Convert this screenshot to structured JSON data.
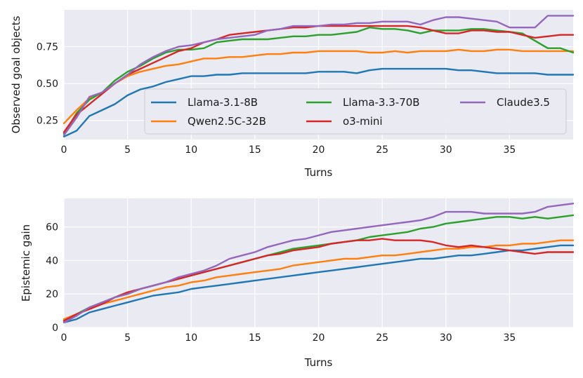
{
  "chart_data": [
    {
      "type": "line",
      "xlabel": "Turns",
      "ylabel": "Observed goal objects",
      "xlim": [
        0,
        40
      ],
      "ylim": [
        0.12,
        1.0
      ],
      "xticks": [
        0,
        5,
        10,
        15,
        20,
        25,
        30,
        35
      ],
      "yticks": [
        0.25,
        0.5,
        0.75
      ],
      "ytick_labels": [
        "0.25",
        "0.50",
        "0.75"
      ],
      "legend": "lower-right, 3 columns",
      "series": [
        {
          "name": "Llama-3.1-8B",
          "color": "#1f77b4",
          "values": [
            0.14,
            0.18,
            0.28,
            0.32,
            0.36,
            0.42,
            0.46,
            0.48,
            0.51,
            0.53,
            0.55,
            0.55,
            0.56,
            0.56,
            0.57,
            0.57,
            0.57,
            0.57,
            0.57,
            0.57,
            0.58,
            0.58,
            0.58,
            0.57,
            0.59,
            0.6,
            0.6,
            0.6,
            0.6,
            0.6,
            0.6,
            0.59,
            0.59,
            0.58,
            0.57,
            0.57,
            0.57,
            0.57,
            0.56,
            0.56,
            0.56
          ]
        },
        {
          "name": "Qwen2.5C-32B",
          "color": "#ff7f0e",
          "values": [
            0.23,
            0.32,
            0.4,
            0.44,
            0.5,
            0.55,
            0.58,
            0.6,
            0.62,
            0.63,
            0.65,
            0.67,
            0.67,
            0.68,
            0.68,
            0.69,
            0.7,
            0.7,
            0.71,
            0.71,
            0.72,
            0.72,
            0.72,
            0.72,
            0.71,
            0.71,
            0.72,
            0.71,
            0.72,
            0.72,
            0.72,
            0.73,
            0.72,
            0.72,
            0.73,
            0.73,
            0.72,
            0.72,
            0.72,
            0.72,
            0.72
          ]
        },
        {
          "name": "Llama-3.3-70B",
          "color": "#2ca02c",
          "values": [
            0.16,
            0.3,
            0.39,
            0.44,
            0.52,
            0.58,
            0.62,
            0.67,
            0.71,
            0.73,
            0.73,
            0.74,
            0.78,
            0.79,
            0.8,
            0.8,
            0.8,
            0.81,
            0.82,
            0.82,
            0.83,
            0.83,
            0.84,
            0.85,
            0.88,
            0.87,
            0.87,
            0.86,
            0.84,
            0.86,
            0.86,
            0.86,
            0.87,
            0.87,
            0.86,
            0.85,
            0.84,
            0.79,
            0.74,
            0.74,
            0.71
          ]
        },
        {
          "name": "o3-mini",
          "color": "#d62728",
          "values": [
            0.17,
            0.29,
            0.36,
            0.43,
            0.5,
            0.56,
            0.6,
            0.64,
            0.68,
            0.72,
            0.74,
            0.78,
            0.8,
            0.83,
            0.84,
            0.85,
            0.86,
            0.87,
            0.88,
            0.88,
            0.89,
            0.89,
            0.89,
            0.89,
            0.89,
            0.89,
            0.89,
            0.89,
            0.88,
            0.86,
            0.84,
            0.84,
            0.86,
            0.86,
            0.85,
            0.85,
            0.83,
            0.81,
            0.82,
            0.83,
            0.83
          ]
        },
        {
          "name": "Claude3.5",
          "color": "#9467bd",
          "values": [
            0.15,
            0.27,
            0.41,
            0.44,
            0.5,
            0.56,
            0.63,
            0.68,
            0.72,
            0.75,
            0.76,
            0.78,
            0.8,
            0.81,
            0.82,
            0.83,
            0.86,
            0.87,
            0.89,
            0.89,
            0.89,
            0.9,
            0.9,
            0.91,
            0.91,
            0.92,
            0.92,
            0.92,
            0.9,
            0.93,
            0.95,
            0.95,
            0.94,
            0.93,
            0.92,
            0.88,
            0.88,
            0.88,
            0.96,
            0.96,
            0.96
          ]
        }
      ]
    },
    {
      "type": "line",
      "xlabel": "Turns",
      "ylabel": "Epistemic gain",
      "xlim": [
        0,
        40
      ],
      "ylim": [
        0,
        77
      ],
      "xticks": [
        0,
        5,
        10,
        15,
        20,
        25,
        30,
        35
      ],
      "yticks": [
        0,
        20,
        40,
        60
      ],
      "ytick_labels": [
        "0",
        "20",
        "40",
        "60"
      ],
      "series": [
        {
          "name": "Llama-3.1-8B",
          "color": "#1f77b4",
          "values": [
            3,
            5,
            9,
            11,
            13,
            15,
            17,
            19,
            20,
            21,
            23,
            24,
            25,
            26,
            27,
            28,
            29,
            30,
            31,
            32,
            33,
            34,
            35,
            36,
            37,
            38,
            39,
            40,
            41,
            41,
            42,
            43,
            43,
            44,
            45,
            46,
            46,
            47,
            48,
            49,
            49
          ]
        },
        {
          "name": "Qwen2.5C-32B",
          "color": "#ff7f0e",
          "values": [
            5,
            8,
            11,
            14,
            16,
            18,
            20,
            22,
            24,
            25,
            27,
            28,
            30,
            31,
            32,
            33,
            34,
            35,
            37,
            38,
            39,
            40,
            41,
            41,
            42,
            43,
            43,
            44,
            45,
            46,
            47,
            47,
            48,
            48,
            49,
            49,
            50,
            50,
            51,
            52,
            52
          ]
        },
        {
          "name": "Llama-3.3-70B",
          "color": "#2ca02c",
          "values": [
            4,
            8,
            12,
            15,
            18,
            20,
            23,
            25,
            27,
            29,
            31,
            33,
            35,
            37,
            39,
            41,
            43,
            45,
            47,
            48,
            49,
            50,
            51,
            52,
            54,
            55,
            56,
            57,
            59,
            60,
            62,
            63,
            64,
            65,
            66,
            66,
            65,
            66,
            65,
            66,
            67
          ]
        },
        {
          "name": "o3-mini",
          "color": "#d62728",
          "values": [
            4,
            8,
            11,
            14,
            18,
            21,
            23,
            25,
            27,
            29,
            31,
            33,
            35,
            37,
            39,
            41,
            43,
            44,
            46,
            47,
            48,
            50,
            51,
            52,
            52,
            53,
            52,
            52,
            52,
            51,
            49,
            48,
            49,
            48,
            47,
            46,
            45,
            44,
            45,
            45,
            45
          ]
        },
        {
          "name": "Claude3.5",
          "color": "#9467bd",
          "values": [
            3,
            7,
            12,
            15,
            18,
            20,
            23,
            25,
            27,
            30,
            32,
            34,
            37,
            41,
            43,
            45,
            48,
            50,
            52,
            53,
            55,
            57,
            58,
            59,
            60,
            61,
            62,
            63,
            64,
            66,
            69,
            69,
            69,
            68,
            68,
            68,
            68,
            69,
            72,
            73,
            74
          ]
        }
      ]
    }
  ]
}
